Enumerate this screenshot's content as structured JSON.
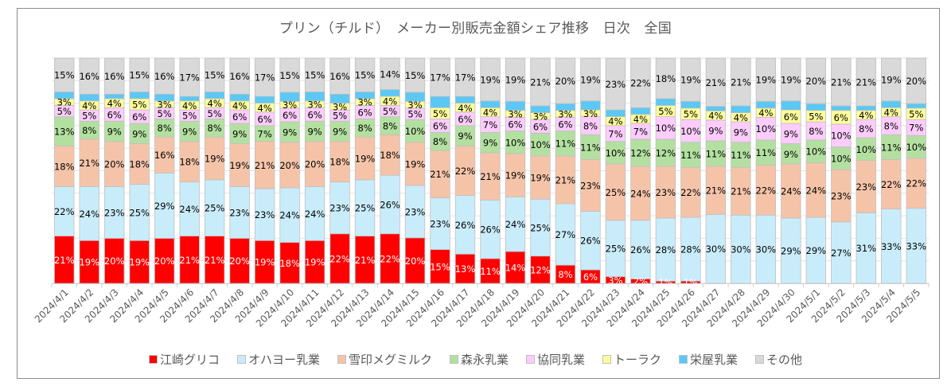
{
  "chart_data": {
    "type": "bar",
    "stacked": "percent",
    "title": "プリン（チルド）　メーカー別販売金額シェア推移　日次　全国",
    "xlabel": "",
    "ylabel": "",
    "ylim": [
      0,
      100
    ],
    "grid": true,
    "legend_position": "bottom",
    "categories": [
      "2024/4/1",
      "2024/4/2",
      "2024/4/3",
      "2024/4/4",
      "2024/4/5",
      "2024/4/6",
      "2024/4/7",
      "2024/4/8",
      "2024/4/9",
      "2024/4/10",
      "2024/4/11",
      "2024/4/12",
      "2024/4/13",
      "2024/4/14",
      "2024/4/15",
      "2024/4/16",
      "2024/4/17",
      "2024/4/18",
      "2024/4/19",
      "2024/4/20",
      "2024/4/21",
      "2024/4/22",
      "2024/4/23",
      "2024/4/24",
      "2024/4/25",
      "2024/4/26",
      "2024/4/27",
      "2024/4/28",
      "2024/4/29",
      "2024/4/30",
      "2024/5/1",
      "2024/5/2",
      "2024/5/3",
      "2024/5/4",
      "2024/5/5"
    ],
    "series": [
      {
        "name": "江崎グリコ",
        "color": "#ff0000",
        "label_color": "#ffffff",
        "show_labels": true,
        "values": [
          21,
          19,
          20,
          19,
          20,
          21,
          21,
          20,
          19,
          18,
          19,
          22,
          21,
          22,
          20,
          15,
          13,
          11,
          14,
          12,
          8,
          6,
          3,
          2,
          1,
          1,
          0,
          0,
          0,
          0,
          0,
          0,
          0,
          0,
          0
        ]
      },
      {
        "name": "オハヨー乳業",
        "color": "#c9ecfb",
        "label_color": "#000000",
        "show_labels": true,
        "values": [
          22,
          24,
          23,
          25,
          29,
          24,
          25,
          23,
          23,
          24,
          24,
          23,
          25,
          26,
          23,
          23,
          26,
          26,
          24,
          25,
          27,
          26,
          25,
          26,
          28,
          28,
          30,
          30,
          30,
          29,
          29,
          27,
          31,
          33,
          33
        ]
      },
      {
        "name": "雪印メグミルク",
        "color": "#f5c4a8",
        "label_color": "#000000",
        "show_labels": true,
        "values": [
          18,
          21,
          20,
          18,
          16,
          18,
          19,
          19,
          21,
          20,
          20,
          18,
          19,
          18,
          19,
          21,
          22,
          21,
          19,
          19,
          21,
          23,
          25,
          24,
          23,
          22,
          21,
          21,
          22,
          24,
          24,
          23,
          23,
          22,
          22
        ]
      },
      {
        "name": "森永乳業",
        "color": "#b3e0a0",
        "label_color": "#000000",
        "show_labels": true,
        "values": [
          13,
          8,
          9,
          9,
          8,
          9,
          8,
          9,
          7,
          9,
          9,
          9,
          8,
          8,
          10,
          8,
          9,
          9,
          10,
          10,
          11,
          11,
          10,
          12,
          12,
          11,
          11,
          11,
          11,
          9,
          10,
          10,
          10,
          11,
          10
        ]
      },
      {
        "name": "協同乳業",
        "color": "#fcccfc",
        "label_color": "#000000",
        "show_labels": true,
        "values": [
          5,
          5,
          6,
          6,
          5,
          5,
          5,
          6,
          6,
          6,
          6,
          5,
          6,
          5,
          5,
          6,
          6,
          7,
          6,
          6,
          6,
          8,
          7,
          7,
          10,
          10,
          9,
          9,
          10,
          9,
          8,
          10,
          8,
          8,
          7
        ]
      },
      {
        "name": "トーラク",
        "color": "#fdfd9a",
        "label_color": "#000000",
        "show_labels": true,
        "values": [
          3,
          4,
          4,
          5,
          3,
          4,
          4,
          4,
          4,
          3,
          3,
          3,
          3,
          4,
          3,
          5,
          4,
          4,
          3,
          3,
          3,
          3,
          4,
          4,
          5,
          5,
          4,
          4,
          4,
          6,
          5,
          6,
          4,
          4,
          5
        ]
      },
      {
        "name": "栄屋乳業",
        "color": "#5bc8f5",
        "label_color": "#000000",
        "show_labels": false,
        "values": [
          3,
          3,
          2,
          3,
          3,
          2,
          3,
          3,
          3,
          4,
          4,
          4,
          3,
          3,
          4,
          5,
          3,
          3,
          4,
          3,
          3,
          4,
          3,
          3,
          3,
          3,
          2,
          3,
          3,
          4,
          3,
          2,
          2,
          3,
          2
        ]
      },
      {
        "name": "その他",
        "color": "#d9d9d9",
        "label_color": "#000000",
        "show_labels": true,
        "values": [
          15,
          16,
          16,
          15,
          16,
          17,
          15,
          16,
          17,
          15,
          15,
          16,
          15,
          14,
          15,
          17,
          17,
          19,
          19,
          21,
          20,
          19,
          23,
          22,
          18,
          19,
          21,
          21,
          19,
          19,
          20,
          21,
          21,
          19,
          20
        ]
      }
    ]
  }
}
